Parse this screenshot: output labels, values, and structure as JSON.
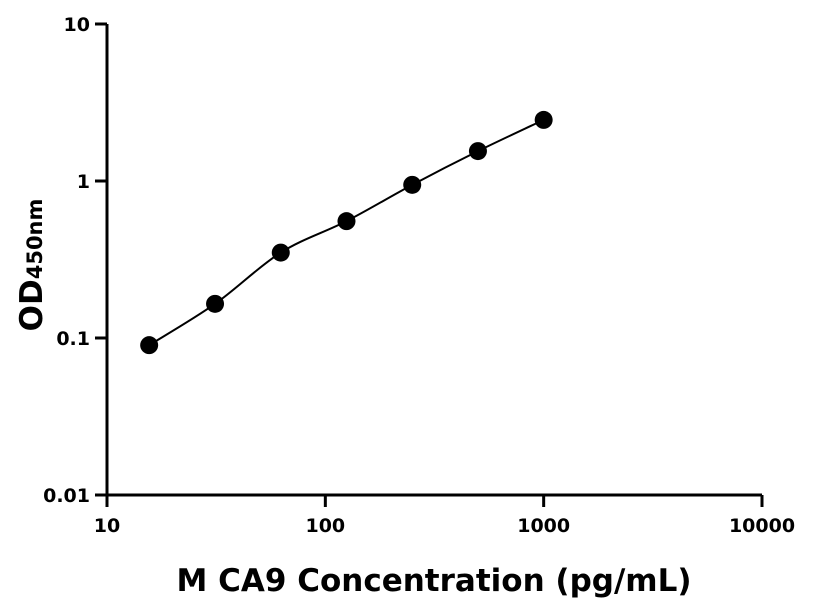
{
  "chart_data": {
    "type": "scatter",
    "title": "",
    "xlabel": "M CA9 Concentration (pg/mL)",
    "ylabel": "OD",
    "ylabel_subscript": "450nm",
    "xscale": "log",
    "yscale": "log",
    "xlim": [
      10,
      10000
    ],
    "ylim": [
      0.01,
      10
    ],
    "xticks": [
      "10",
      "100",
      "1000",
      "10000"
    ],
    "yticks": [
      "0.01",
      "0.1",
      "1",
      "10"
    ],
    "grid": false,
    "fit_line": true,
    "colors": {
      "points": "#000000",
      "line": "#000000"
    },
    "series": [
      {
        "x": [
          15.6,
          31.25,
          62.5,
          125,
          250,
          500,
          1000
        ],
        "y": [
          0.09,
          0.165,
          0.35,
          0.555,
          0.945,
          1.55,
          2.45
        ]
      }
    ]
  }
}
